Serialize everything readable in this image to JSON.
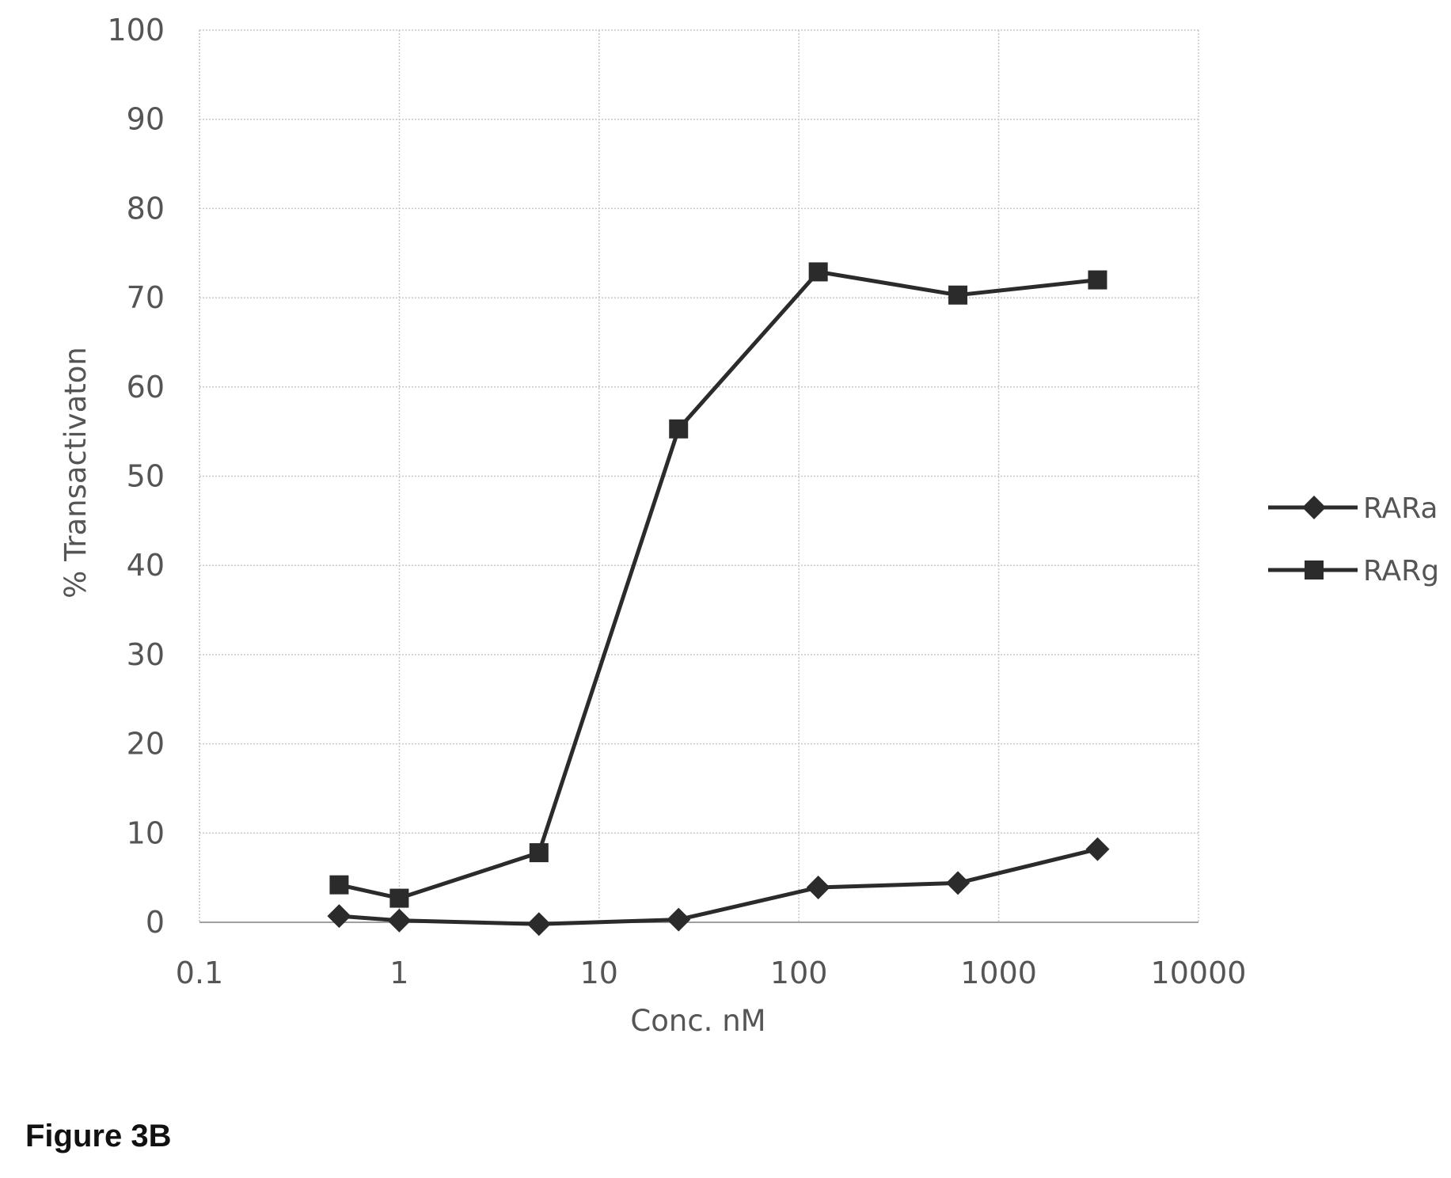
{
  "caption": "Figure 3B",
  "chart_data": {
    "type": "line",
    "title": "",
    "xlabel": "Conc. nM",
    "ylabel": "% Transactivaton",
    "x_scale": "log",
    "xlim": [
      0.1,
      10000
    ],
    "ylim": [
      0,
      100
    ],
    "x_ticks": [
      0.1,
      1,
      10,
      100,
      1000,
      10000
    ],
    "x_tick_labels": [
      "0.1",
      "1",
      "10",
      "100",
      "1000",
      "10000"
    ],
    "y_ticks": [
      0,
      10,
      20,
      30,
      40,
      50,
      60,
      70,
      80,
      90,
      100
    ],
    "y_tick_labels": [
      "0",
      "10",
      "20",
      "30",
      "40",
      "50",
      "60",
      "70",
      "80",
      "90",
      "100"
    ],
    "grid": true,
    "legend_position": "right",
    "series": [
      {
        "name": "RARa",
        "marker": "diamond",
        "color": "#2b2b2b",
        "x": [
          0.5,
          1,
          5,
          25,
          125,
          625,
          3125
        ],
        "y": [
          0.7,
          0.2,
          -0.2,
          0.3,
          3.9,
          4.4,
          8.2
        ]
      },
      {
        "name": "RARg",
        "marker": "square",
        "color": "#2b2b2b",
        "x": [
          0.5,
          1,
          5,
          25,
          125,
          625,
          3125
        ],
        "y": [
          4.2,
          2.7,
          7.8,
          55.3,
          72.9,
          70.3,
          72.0
        ]
      }
    ]
  }
}
